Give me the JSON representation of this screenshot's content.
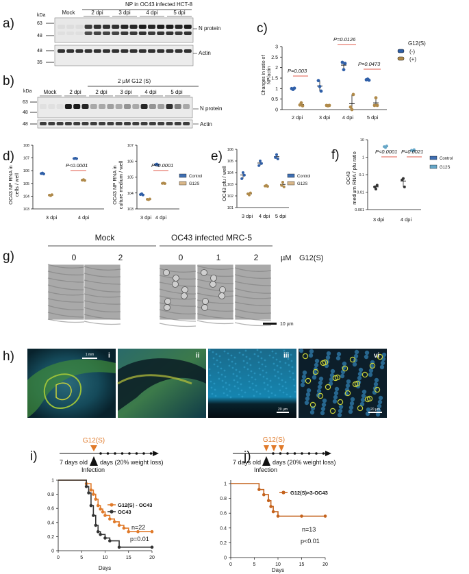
{
  "figure": {
    "a": {
      "label": "a)",
      "kda": "kDa",
      "header": "NP in OC43 infected HCT-8",
      "lanes": [
        "Mock",
        "2 dpi",
        "3 dpi",
        "4 dpi",
        "5 dpi"
      ],
      "marker_top": [
        "63",
        "48"
      ],
      "marker_bottom": [
        "48",
        "35"
      ],
      "band_np": "N protein",
      "band_actin": "Actin"
    },
    "b": {
      "label": "b)",
      "kda": "kDa",
      "header": "2 µM   G12 (S)",
      "lanes": [
        "Mock",
        "2 dpi",
        "2 dpi",
        "3 dpi",
        "4 dpi",
        "5 dpi"
      ],
      "marker_top": [
        "63",
        "48"
      ],
      "marker_bottom": [
        "48"
      ],
      "band_np": "N protein",
      "band_actin": "Actin"
    },
    "c": {
      "label": "c)",
      "ylabel1": "Changes in ratio of",
      "ylabel2": "NP/actin",
      "legend_title": "G12(S)",
      "legend": [
        "(-)",
        "(+)"
      ],
      "categories": [
        "2 dpi",
        "3 dpi",
        "4 dpi",
        "5 dpi"
      ],
      "yticks": [
        "0",
        "0.5",
        "1",
        "1.5",
        "2",
        "2.5",
        "3"
      ],
      "pvalues": [
        "P=0.003",
        "P=0.0126",
        "P=0.0473"
      ]
    },
    "d": {
      "label": "d)",
      "left_ylabel1": "OC43 NP RNA in",
      "left_ylabel2": "cells / well",
      "right_ylabel1": "OC43 NP RNA in",
      "right_ylabel2": "culture medium / well",
      "left_categories": [
        "3 dpi",
        "4 dpi"
      ],
      "right_categories": [
        "3 dpi",
        "4 dpi"
      ],
      "pvalue": "P<0.0001",
      "legend": [
        "Control",
        "G12S"
      ]
    },
    "e": {
      "label": "e)",
      "ylabel": "OC43 pfu / well",
      "categories": [
        "3 dpi",
        "4 dpi",
        "5 dpi"
      ],
      "legend": [
        "Control",
        "G12S"
      ]
    },
    "f": {
      "label": "f)",
      "ylabel1": "OC43",
      "ylabel2": "medium RNA / pfu ratio",
      "categories": [
        "3 dpi",
        "4 dpi"
      ],
      "yticks": [
        "10",
        "1",
        "0.1",
        "0.01",
        "0.001"
      ],
      "pvalues": [
        "P<0.0001",
        "P=0.0021"
      ],
      "legend": [
        "Control",
        "G12S"
      ]
    },
    "g": {
      "label": "g)",
      "group_mock": "Mock",
      "group_infected": "OC43 infected MRC-5",
      "concentrations": [
        "0",
        "2",
        "0",
        "1",
        "2"
      ],
      "unit": "µM",
      "compound": "G12(S)",
      "scalebar": "10 µm"
    },
    "h": {
      "label": "h)",
      "panels": [
        "i",
        "ii",
        "iii",
        "vi"
      ],
      "scalebars": [
        "1 mm",
        "20 µm",
        "20 µm"
      ]
    },
    "i": {
      "label": "i)",
      "treatment": "G12(S)",
      "age": "7 days old",
      "timeline": "days (20% weight loss)",
      "event": "Infection",
      "n": "n=22",
      "p": "p=0.01",
      "xlabel": "Days",
      "series_labels": [
        "G12(S) - OC43",
        "OC43"
      ]
    },
    "j": {
      "label": "j)",
      "treatment": "G12(S)",
      "age": "7 days old",
      "timeline": "days (20% weight loss)",
      "event": "Infection",
      "n": "n=13",
      "p": "p<0.01",
      "xlabel": "Days",
      "series_labels": [
        "G12(S)×3-OC43"
      ]
    }
  },
  "colors": {
    "blue": "#2f5fa8",
    "tan": "#b08a4a",
    "orange": "#e07a2a",
    "darkorange": "#c4621c",
    "red": "#e05a4a",
    "control_legend": "#3f6fb3",
    "g12s_legend": "#d9b78a"
  },
  "chart_data": [
    {
      "type": "scatter",
      "panel": "c",
      "categories": [
        "2 dpi",
        "3 dpi",
        "4 dpi",
        "5 dpi"
      ],
      "ylabel": "Changes in ratio of NP/actin",
      "ylim": [
        0,
        3
      ],
      "series": [
        {
          "name": "(-)",
          "values": [
            [
              1.0,
              0.96,
              1.02
            ],
            [
              1.38,
              1.1,
              0.88
            ],
            [
              2.25,
              1.9,
              2.2
            ],
            [
              1.42,
              1.45,
              1.4
            ]
          ]
        },
        {
          "name": "(+)",
          "values": [
            [
              0.22,
              0.32,
              0.18
            ],
            [
              0.2,
              0.18,
              0.2
            ],
            [
              0.12,
              0.0,
              0.72
            ],
            [
              0.2,
              0.56,
              0.2
            ]
          ]
        }
      ],
      "legend": "right"
    },
    {
      "type": "scatter",
      "panel": "d-left",
      "categories": [
        "3 dpi",
        "4 dpi"
      ],
      "series": [
        {
          "name": "Control",
          "values": [
            [
              600000,
              650000,
              550000
            ],
            [
              9000000,
              9500000,
              8800000
            ]
          ]
        },
        {
          "name": "G12S",
          "values": [
            [
              12000,
              11000,
              13000
            ],
            [
              180000,
              200000,
              170000
            ]
          ]
        }
      ],
      "ylim": [
        1000,
        100000000
      ]
    },
    {
      "type": "scatter",
      "panel": "d-right",
      "categories": [
        "3 dpi",
        "4 dpi"
      ],
      "series": [
        {
          "name": "Control",
          "values": [
            [
              8000,
              9000,
              7500
            ],
            [
              600000,
              650000,
              580000
            ]
          ]
        },
        {
          "name": "G12S",
          "values": [
            [
              4000,
              3800,
              4200
            ],
            [
              40000,
              42000,
              39000
            ]
          ]
        }
      ],
      "ylim": [
        1000,
        10000000
      ]
    },
    {
      "type": "scatter",
      "panel": "e",
      "categories": [
        "3 dpi",
        "4 dpi",
        "5 dpi"
      ],
      "series": [
        {
          "name": "Control",
          "values": [
            [
              3000,
              10000,
              6000
            ],
            [
              40000,
              100000,
              60000
            ],
            [
              200000,
              350000,
              150000
            ]
          ]
        },
        {
          "name": "G12S",
          "values": [
            [
              150,
              120,
              180
            ],
            [
              700,
              800,
              650
            ],
            [
              800,
              1500,
              600
            ]
          ]
        }
      ],
      "ylim": [
        10,
        1000000
      ]
    },
    {
      "type": "scatter",
      "panel": "f",
      "categories": [
        "3 dpi",
        "4 dpi"
      ],
      "series": [
        {
          "name": "Control",
          "values": [
            [
              0.02,
              0.015,
              0.025
            ],
            [
              0.05,
              0.06,
              0.02
            ]
          ]
        },
        {
          "name": "G12S",
          "values": [
            [
              4.0,
              3.6,
              4.4
            ],
            [
              2.5,
              2.3,
              2.7
            ]
          ]
        }
      ],
      "ylim": [
        0.001,
        10
      ]
    },
    {
      "type": "line",
      "panel": "i",
      "xlabel": "Days",
      "xlim": [
        0,
        20
      ],
      "ylim": [
        0,
        1
      ],
      "series": [
        {
          "name": "G12(S) - OC43",
          "x": [
            0,
            6,
            7,
            7.5,
            8,
            8.5,
            9,
            9.5,
            10,
            11,
            12,
            13,
            14,
            15,
            17,
            20
          ],
          "y": [
            1,
            0.95,
            0.86,
            0.8,
            0.73,
            0.64,
            0.59,
            0.55,
            0.5,
            0.45,
            0.41,
            0.36,
            0.32,
            0.27,
            0.27,
            0.27
          ]
        },
        {
          "name": "OC43",
          "x": [
            0,
            6,
            6.5,
            7,
            7.5,
            8,
            8.5,
            9,
            10,
            11,
            13,
            20
          ],
          "y": [
            1,
            0.91,
            0.82,
            0.64,
            0.5,
            0.36,
            0.27,
            0.23,
            0.18,
            0.14,
            0.05,
            0.05
          ]
        }
      ]
    },
    {
      "type": "line",
      "panel": "j",
      "xlabel": "Days",
      "xlim": [
        0,
        20
      ],
      "ylim": [
        0,
        1
      ],
      "series": [
        {
          "name": "G12(S)×3-OC43",
          "x": [
            0,
            6,
            7,
            8,
            8.5,
            9,
            10,
            15,
            20
          ],
          "y": [
            1,
            0.92,
            0.85,
            0.77,
            0.69,
            0.62,
            0.56,
            0.56,
            0.56
          ]
        }
      ]
    }
  ]
}
